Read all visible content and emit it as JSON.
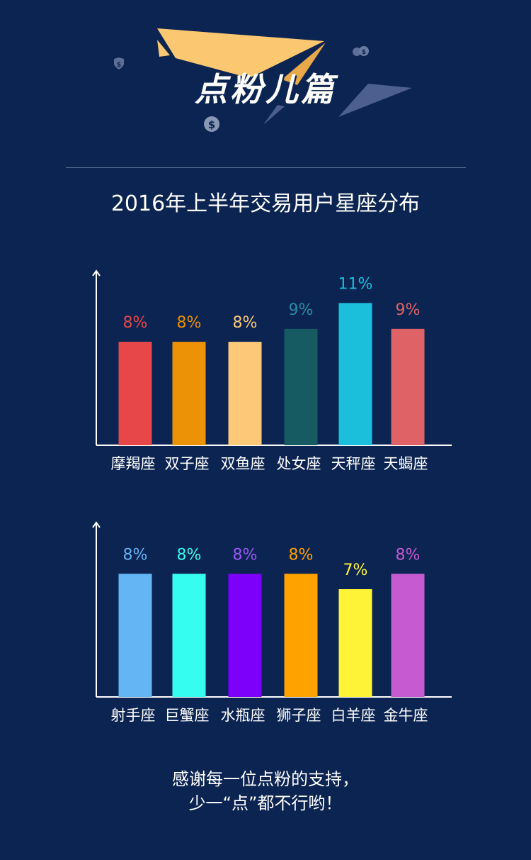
{
  "banner": {
    "title": "点粉儿篇"
  },
  "subtitle": "2016年上半年交易用户星座分布",
  "chart_data": [
    {
      "type": "bar",
      "categories": [
        "摩羯座",
        "双子座",
        "双鱼座",
        "处女座",
        "天秤座",
        "天蝎座"
      ],
      "values": [
        8,
        8,
        8,
        9,
        11,
        9
      ],
      "value_labels": [
        "8%",
        "8%",
        "8%",
        "9%",
        "11%",
        "9%"
      ],
      "colors": [
        "#e8474a",
        "#eb9207",
        "#fdc878",
        "#165a62",
        "#1bbedb",
        "#df6366"
      ],
      "label_colors": [
        "#e8474a",
        "#eb9207",
        "#fdc878",
        "#2a8aa3",
        "#1bbedb",
        "#df6366"
      ],
      "ylim": [
        0,
        12.5
      ],
      "grid": false,
      "title": "",
      "xlabel": "",
      "ylabel": ""
    },
    {
      "type": "bar",
      "categories": [
        "射手座",
        "巨蟹座",
        "水瓶座",
        "狮子座",
        "白羊座",
        "金牛座"
      ],
      "values": [
        8,
        8,
        8,
        8,
        7,
        8
      ],
      "value_labels": [
        "8%",
        "8%",
        "8%",
        "8%",
        "7%",
        "8%"
      ],
      "colors": [
        "#64b5f4",
        "#35fdef",
        "#7d00fb",
        "#fea200",
        "#fef336",
        "#c55ad1"
      ],
      "label_colors": [
        "#64b5f4",
        "#35fdef",
        "#9b59f5",
        "#fea200",
        "#fef336",
        "#c55ad1"
      ],
      "ylim": [
        0,
        10.5
      ],
      "grid": false,
      "title": "",
      "xlabel": "",
      "ylabel": ""
    }
  ],
  "footer": {
    "line1": "感谢每一位点粉的支持，",
    "line2": "少一“点”都不行哟！"
  }
}
